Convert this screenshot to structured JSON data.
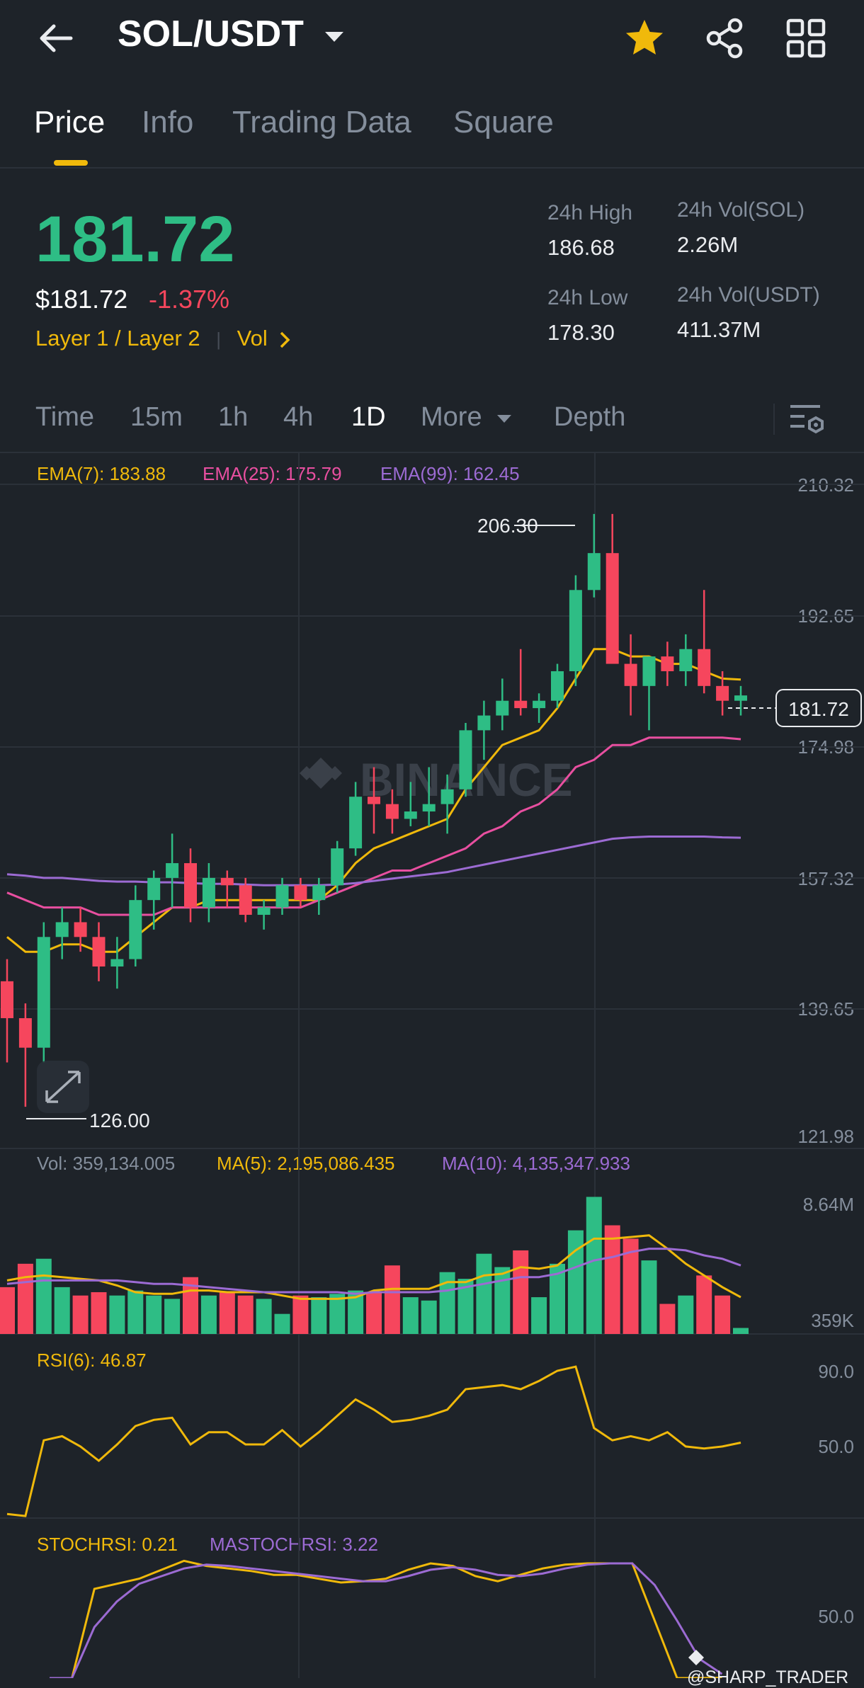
{
  "header": {
    "pair": "SOL/USDT",
    "back_icon": "back-arrow-icon",
    "icons": [
      "star-icon",
      "share-icon",
      "grid-icon"
    ],
    "star_color": "#f0b90b"
  },
  "tabs": [
    {
      "label": "Price",
      "active": true
    },
    {
      "label": "Info",
      "active": false
    },
    {
      "label": "Trading Data",
      "active": false
    },
    {
      "label": "Square",
      "active": false
    }
  ],
  "price": {
    "last": "181.72",
    "usd": "$181.72",
    "change": "-1.37%",
    "tag1": "Layer 1 / Layer 2",
    "tag2": "Vol",
    "up_color": "#2ebd85",
    "down_color": "#f6465d"
  },
  "stats": {
    "high_label": "24h High",
    "high": "186.68",
    "low_label": "24h Low",
    "low": "178.30",
    "vol_sol_label": "24h Vol(SOL)",
    "vol_sol": "2.26M",
    "vol_usdt_label": "24h Vol(USDT)",
    "vol_usdt": "411.37M"
  },
  "intervals": [
    {
      "label": "Time",
      "active": false
    },
    {
      "label": "15m",
      "active": false
    },
    {
      "label": "1h",
      "active": false
    },
    {
      "label": "4h",
      "active": false
    },
    {
      "label": "1D",
      "active": true
    },
    {
      "label": "More",
      "active": false
    },
    {
      "label": "Depth",
      "active": false
    }
  ],
  "indicators": {
    "ema7": "EMA(7): 183.88",
    "ema25": "EMA(25): 175.79",
    "ema99": "EMA(99): 162.45",
    "vol": "Vol: 359,134.005",
    "ma5": "MA(5): 2,195,086.435",
    "ma10": "MA(10): 4,135,347.933",
    "rsi": "RSI(6): 46.87",
    "stochrsi": "STOCHRSI: 0.21",
    "mastochrsi": "MASTOCHRSI: 3.22"
  },
  "watermark": "BINANCE",
  "credit": "@SHARP_TRADER",
  "chart_data": [
    {
      "type": "candlestick",
      "y_ticks": [
        "210.32",
        "192.65",
        "174.98",
        "157.32",
        "139.65",
        "121.98"
      ],
      "ylim": [
        121.98,
        210.32
      ],
      "last_price_label": "181.72",
      "high_marker": "206.30",
      "low_marker": "126.00",
      "candles": [
        [
          143,
          146,
          132,
          138
        ],
        [
          138,
          140,
          126,
          134
        ],
        [
          134,
          151,
          132,
          149
        ],
        [
          149,
          153,
          146,
          151
        ],
        [
          151,
          153,
          147,
          149
        ],
        [
          149,
          151,
          143,
          145
        ],
        [
          145,
          149,
          142,
          146
        ],
        [
          146,
          156,
          145,
          154
        ],
        [
          154,
          158,
          150,
          157
        ],
        [
          157,
          163,
          153,
          159
        ],
        [
          159,
          161,
          151,
          153
        ],
        [
          153,
          159,
          151,
          157
        ],
        [
          157,
          158,
          153,
          156
        ],
        [
          156,
          157,
          151,
          152
        ],
        [
          152,
          154,
          150,
          153
        ],
        [
          153,
          157,
          152,
          156
        ],
        [
          156,
          157,
          153,
          154
        ],
        [
          154,
          157,
          152,
          156
        ],
        [
          156,
          162,
          155,
          161
        ],
        [
          161,
          170,
          160,
          168
        ],
        [
          168,
          172,
          163,
          167
        ],
        [
          167,
          169,
          163,
          165
        ],
        [
          165,
          170,
          164,
          166
        ],
        [
          166,
          172,
          164,
          167
        ],
        [
          167,
          171,
          163,
          169
        ],
        [
          169,
          178,
          168,
          177
        ],
        [
          177,
          181,
          173,
          179
        ],
        [
          179,
          184,
          177,
          181
        ],
        [
          181,
          188,
          179,
          180
        ],
        [
          180,
          182,
          178,
          181
        ],
        [
          181,
          186,
          180,
          185
        ],
        [
          185,
          198,
          183,
          196
        ],
        [
          196,
          206.3,
          195,
          201
        ],
        [
          201,
          206.3,
          186,
          186
        ],
        [
          186,
          190,
          179,
          183
        ],
        [
          183,
          187,
          177,
          187
        ],
        [
          187,
          189,
          183,
          185
        ],
        [
          185,
          190,
          183,
          188
        ],
        [
          188,
          196,
          182,
          183
        ],
        [
          183,
          185,
          179,
          181
        ],
        [
          181,
          183,
          179,
          181.72
        ]
      ],
      "series": [
        {
          "name": "EMA(7)",
          "color": "#f0b90b",
          "values": [
            149,
            147,
            147,
            148,
            148,
            147,
            147,
            149,
            151,
            153,
            153,
            154,
            154,
            154,
            154,
            154,
            154,
            154,
            156,
            159,
            161,
            162,
            163,
            164,
            165,
            169,
            172,
            175,
            176,
            177,
            180,
            184,
            188,
            188,
            187,
            187,
            186,
            186,
            185,
            184,
            183.88
          ]
        },
        {
          "name": "EMA(25)",
          "color": "#e84fa0",
          "values": [
            155,
            154,
            153,
            153,
            153,
            152,
            152,
            152,
            152,
            153,
            153,
            153,
            153,
            153,
            153,
            153,
            153,
            154,
            155,
            156,
            157,
            158,
            158,
            159,
            160,
            161,
            163,
            164,
            166,
            167,
            169,
            172,
            173,
            175,
            175,
            176,
            176,
            176,
            176,
            176,
            175.79
          ]
        },
        {
          "name": "EMA(99)",
          "color": "#9c6bd3",
          "values": [
            157.5,
            157.3,
            157,
            157,
            156.8,
            156.6,
            156.5,
            156.5,
            156.4,
            156.4,
            156.3,
            156.2,
            156.2,
            156.1,
            156,
            156,
            156,
            156,
            156.1,
            156.3,
            156.6,
            156.9,
            157.2,
            157.5,
            157.8,
            158.3,
            158.8,
            159.3,
            159.8,
            160.3,
            160.8,
            161.3,
            161.8,
            162.3,
            162.5,
            162.6,
            162.6,
            162.6,
            162.6,
            162.5,
            162.45
          ]
        }
      ]
    },
    {
      "type": "bar",
      "title": "Volume",
      "y_ticks": [
        "8.64M",
        "359K"
      ],
      "ylim": [
        0,
        8.64
      ],
      "values": [
        2.8,
        4.2,
        4.5,
        2.8,
        2.3,
        2.5,
        2.3,
        2.6,
        2.3,
        2.1,
        3.4,
        2.3,
        2.5,
        2.3,
        2.1,
        1.2,
        2.3,
        2.2,
        2.4,
        2.6,
        2.5,
        4.1,
        2.2,
        2.0,
        3.7,
        3.3,
        4.8,
        4.0,
        5.0,
        2.2,
        4.2,
        6.2,
        8.2,
        6.5,
        5.7,
        4.4,
        1.8,
        2.3,
        3.5,
        2.3,
        0.36
      ],
      "series": [
        {
          "name": "MA(5)",
          "color": "#f0b90b",
          "values": [
            3.2,
            3.4,
            3.5,
            3.4,
            3.3,
            3.2,
            2.9,
            2.5,
            2.4,
            2.4,
            2.6,
            2.6,
            2.5,
            2.5,
            2.5,
            2.3,
            2.1,
            2.1,
            2.1,
            2.2,
            2.6,
            2.7,
            2.7,
            2.7,
            3.1,
            3.1,
            3.5,
            3.6,
            4.0,
            3.9,
            4.1,
            5.0,
            5.7,
            5.7,
            5.8,
            5.9,
            5.1,
            4.2,
            3.5,
            2.8,
            2.2
          ]
        },
        {
          "name": "MA(10)",
          "color": "#9c6bd3",
          "values": [
            3.0,
            3.1,
            3.2,
            3.2,
            3.2,
            3.2,
            3.2,
            3.1,
            3.0,
            3.0,
            2.9,
            2.8,
            2.7,
            2.6,
            2.5,
            2.5,
            2.5,
            2.5,
            2.5,
            2.4,
            2.5,
            2.5,
            2.5,
            2.5,
            2.6,
            2.8,
            3.0,
            3.2,
            3.4,
            3.4,
            3.6,
            4.0,
            4.4,
            4.6,
            4.9,
            5.1,
            5.1,
            5.0,
            4.7,
            4.5,
            4.1
          ]
        }
      ]
    },
    {
      "type": "line",
      "title": "RSI(6)",
      "y_ticks": [
        "90.0",
        "50.0"
      ],
      "ylim": [
        10,
        100
      ],
      "series": [
        {
          "name": "RSI(6)",
          "color": "#f0b90b",
          "values": [
            12,
            11,
            48,
            50,
            45,
            38,
            46,
            55,
            58,
            59,
            46,
            52,
            52,
            46,
            46,
            53,
            45,
            52,
            60,
            68,
            63,
            57,
            58,
            60,
            63,
            73,
            74,
            75,
            73,
            77,
            82,
            84,
            54,
            48,
            50,
            48,
            52,
            45,
            44,
            45,
            46.87
          ]
        }
      ]
    },
    {
      "type": "line",
      "title": "STOCHRSI",
      "y_ticks": [
        "50.0"
      ],
      "ylim": [
        0,
        100
      ],
      "series": [
        {
          "name": "STOCHRSI",
          "color": "#f0b90b",
          "values": [
            0,
            0,
            70,
            74,
            78,
            85,
            92,
            88,
            86,
            84,
            81,
            81,
            78,
            75,
            76,
            78,
            85,
            90,
            88,
            80,
            76,
            81,
            86,
            89,
            90,
            90,
            90,
            45,
            0,
            0,
            0.21
          ]
        },
        {
          "name": "MASTOCHRSI",
          "color": "#9c6bd3",
          "values": [
            0,
            0,
            40,
            60,
            74,
            80,
            86,
            89,
            88,
            86,
            84,
            82,
            80,
            78,
            76,
            76,
            80,
            85,
            87,
            85,
            81,
            80,
            82,
            86,
            89,
            90,
            90,
            73,
            45,
            15,
            3.22
          ]
        }
      ]
    }
  ]
}
